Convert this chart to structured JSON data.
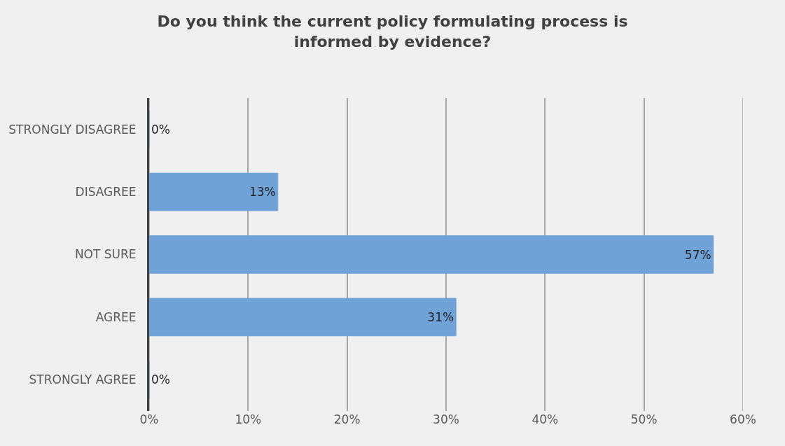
{
  "chart_data": {
    "type": "bar",
    "orientation": "horizontal",
    "title": "Do you think the current policy formulating process is informed by evidence?",
    "categories": [
      "STRONGLY DISAGREE",
      "DISAGREE",
      "NOT SURE",
      "AGREE",
      "STRONGLY AGREE"
    ],
    "values": [
      0,
      13,
      57,
      31,
      0
    ],
    "value_labels": [
      "0%",
      "13%",
      "57%",
      "31%",
      "0%"
    ],
    "color": "#6fa3d8",
    "xlim": [
      0,
      60
    ],
    "xticks": [
      {
        "value": 0,
        "label": "0%"
      },
      {
        "value": 10,
        "label": "10%"
      },
      {
        "value": 20,
        "label": "20%"
      },
      {
        "value": 30,
        "label": "30%"
      },
      {
        "value": 40,
        "label": "40%"
      },
      {
        "value": 50,
        "label": "50%"
      },
      {
        "value": 60,
        "label": "60%"
      }
    ],
    "grid": "x"
  }
}
